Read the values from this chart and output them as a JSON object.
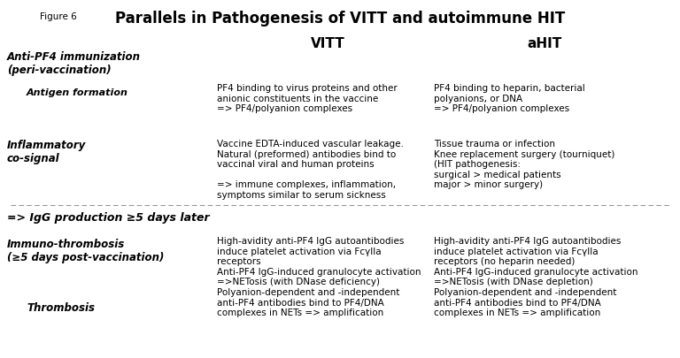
{
  "title": "Parallels in Pathogenesis of VITT and autoimmune HIT",
  "figure_label": "Figure 6",
  "background_color": "#ffffff",
  "text_color": "#000000",
  "col_headers": [
    "VITT",
    "aHIT"
  ],
  "vitt_antigen": "PF4 binding to virus proteins and other\nanionic constituents in the vaccine\n=> PF4/polyanion complexes",
  "ahit_antigen": "PF4 binding to heparin, bacterial\npolyanions, or DNA\n=> PF4/polyanion complexes",
  "vitt_inflam": "Vaccine EDTA-induced vascular leakage.\nNatural (preformed) antibodies bind to\nvaccinal viral and human proteins\n\n=> immune complexes, inflammation,\nsymptoms similar to serum sickness",
  "ahit_inflam": "Tissue trauma or infection\nKnee replacement surgery (tourniquet)\n(HIT pathogenesis:\nsurgical > medical patients\nmajor > minor surgery)",
  "middle_text": "=> IgG production ≥5 days later",
  "vitt_immuno": "High-avidity anti-PF4 IgG autoantibodies\ninduce platelet activation via FcγIIa\nreceptors\nAnti-PF4 IgG-induced granulocyte activation\n=>NETosis (with DNase deficiency)\nPolyanion-dependent and -independent\nanti-PF4 antibodies bind to PF4/DNA\ncomplexes in NETs => amplification",
  "ahit_immuno": "High-avidity anti-PF4 IgG autoantibodies\ninduce platelet activation via FcγIIa\nreceptors (no heparin needed)\nAnti-PF4 IgG-induced granulocyte activation\n=>NETosis (with DNase depletion)\nPolyanion-dependent and -independent\nanti-PF4 antibodies bind to PF4/DNA\ncomplexes in NETs => amplification",
  "label_antipf4": "Anti-PF4 immunization\n(peri-vaccination)",
  "label_antigen": "Antigen formation",
  "label_inflam": "Inflammatory\nco-signal",
  "label_immuno": "Immuno-thrombosis\n(≥5 days post-vaccination)",
  "label_thromb": "Thrombosis",
  "fig_w": 7.68,
  "fig_h": 4.05,
  "dpi": 100
}
